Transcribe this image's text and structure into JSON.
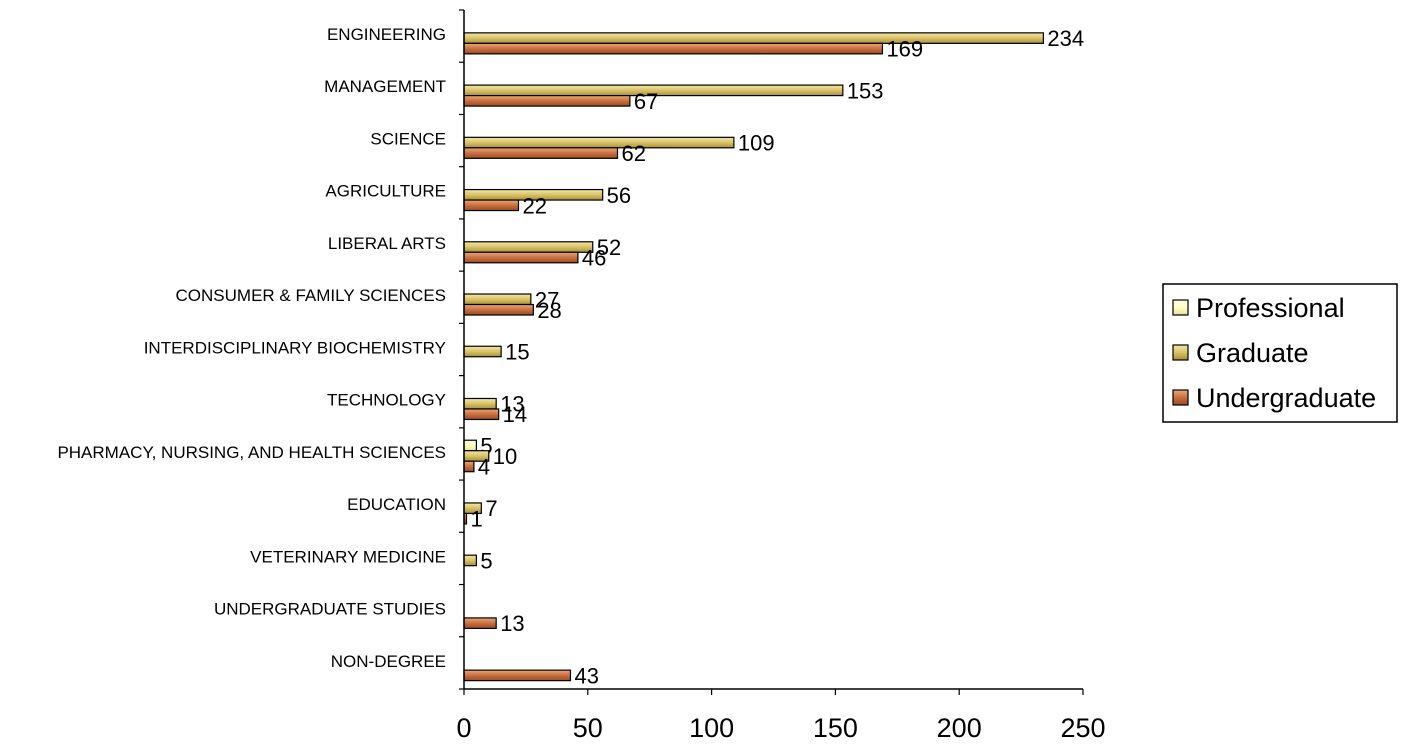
{
  "chart_data": {
    "type": "bar",
    "orientation": "horizontal",
    "title": "",
    "xlabel": "",
    "ylabel": "",
    "xlim": [
      0,
      250
    ],
    "x_ticks": [
      0,
      50,
      100,
      150,
      200,
      250
    ],
    "x_tick_labels": [
      "0",
      "50",
      "100",
      "150",
      "200",
      "250"
    ],
    "grid": false,
    "legend_position": "right",
    "categories": [
      "ENGINEERING",
      "MANAGEMENT",
      "SCIENCE",
      "AGRICULTURE",
      "LIBERAL ARTS",
      "CONSUMER & FAMILY SCIENCES",
      "INTERDISCIPLINARY BIOCHEMISTRY",
      "TECHNOLOGY",
      "PHARMACY, NURSING, AND HEALTH SCIENCES",
      "EDUCATION",
      "VETERINARY MEDICINE",
      "UNDERGRADUATE STUDIES",
      "NON-DEGREE"
    ],
    "series": [
      {
        "name": "Professional",
        "color": "#FFFFC0",
        "values": [
          null,
          null,
          null,
          null,
          null,
          null,
          null,
          null,
          5,
          null,
          null,
          null,
          null
        ]
      },
      {
        "name": "Graduate",
        "color": "#D9C368",
        "values": [
          234,
          153,
          109,
          56,
          52,
          27,
          15,
          13,
          10,
          7,
          5,
          null,
          null
        ]
      },
      {
        "name": "Undergraduate",
        "color": "#C87040",
        "values": [
          169,
          67,
          62,
          22,
          46,
          28,
          null,
          14,
          4,
          1,
          null,
          13,
          43
        ]
      }
    ]
  }
}
